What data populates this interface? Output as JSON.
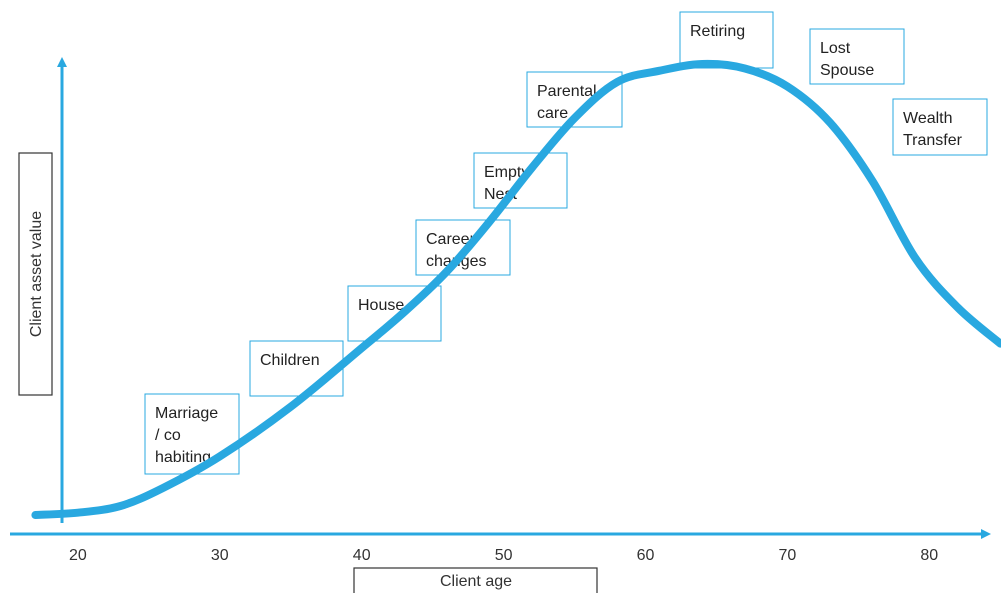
{
  "chart_data": {
    "type": "line",
    "xlabel": "Client age",
    "ylabel": "Client asset value",
    "x_ticks": [
      20,
      30,
      40,
      50,
      60,
      70,
      80
    ],
    "xlim": [
      12,
      85
    ],
    "ylim": [
      0,
      100
    ],
    "grid": false,
    "series": [
      {
        "color": "#29a8e0",
        "x": [
          17,
          20,
          23,
          26,
          30,
          35,
          40,
          43,
          46,
          49,
          52,
          55,
          58,
          61,
          64,
          67,
          70,
          73,
          76,
          79,
          82,
          85
        ],
        "y": [
          2,
          2.5,
          4,
          8,
          15,
          26,
          39,
          47,
          56,
          67,
          79,
          90,
          98,
          100.5,
          102,
          101,
          97,
          89,
          76,
          59,
          48,
          40
        ]
      }
    ],
    "stages": [
      {
        "label": [
          "Marriage",
          "/ co",
          "habiting"
        ]
      },
      {
        "label": [
          "Children"
        ]
      },
      {
        "label": [
          "House"
        ]
      },
      {
        "label": [
          "Career",
          "changes"
        ]
      },
      {
        "label": [
          "Empty",
          "Nest"
        ]
      },
      {
        "label": [
          "Parental",
          "care"
        ]
      },
      {
        "label": [
          "Retiring"
        ]
      },
      {
        "label": [
          "Lost",
          "Spouse"
        ]
      },
      {
        "label": [
          "Wealth",
          "Transfer"
        ]
      }
    ],
    "colors": {
      "curve": "#29a8e0",
      "axis": "#29a8e0",
      "box_border": "#29a8e0",
      "label_box_border": "#333333"
    }
  }
}
